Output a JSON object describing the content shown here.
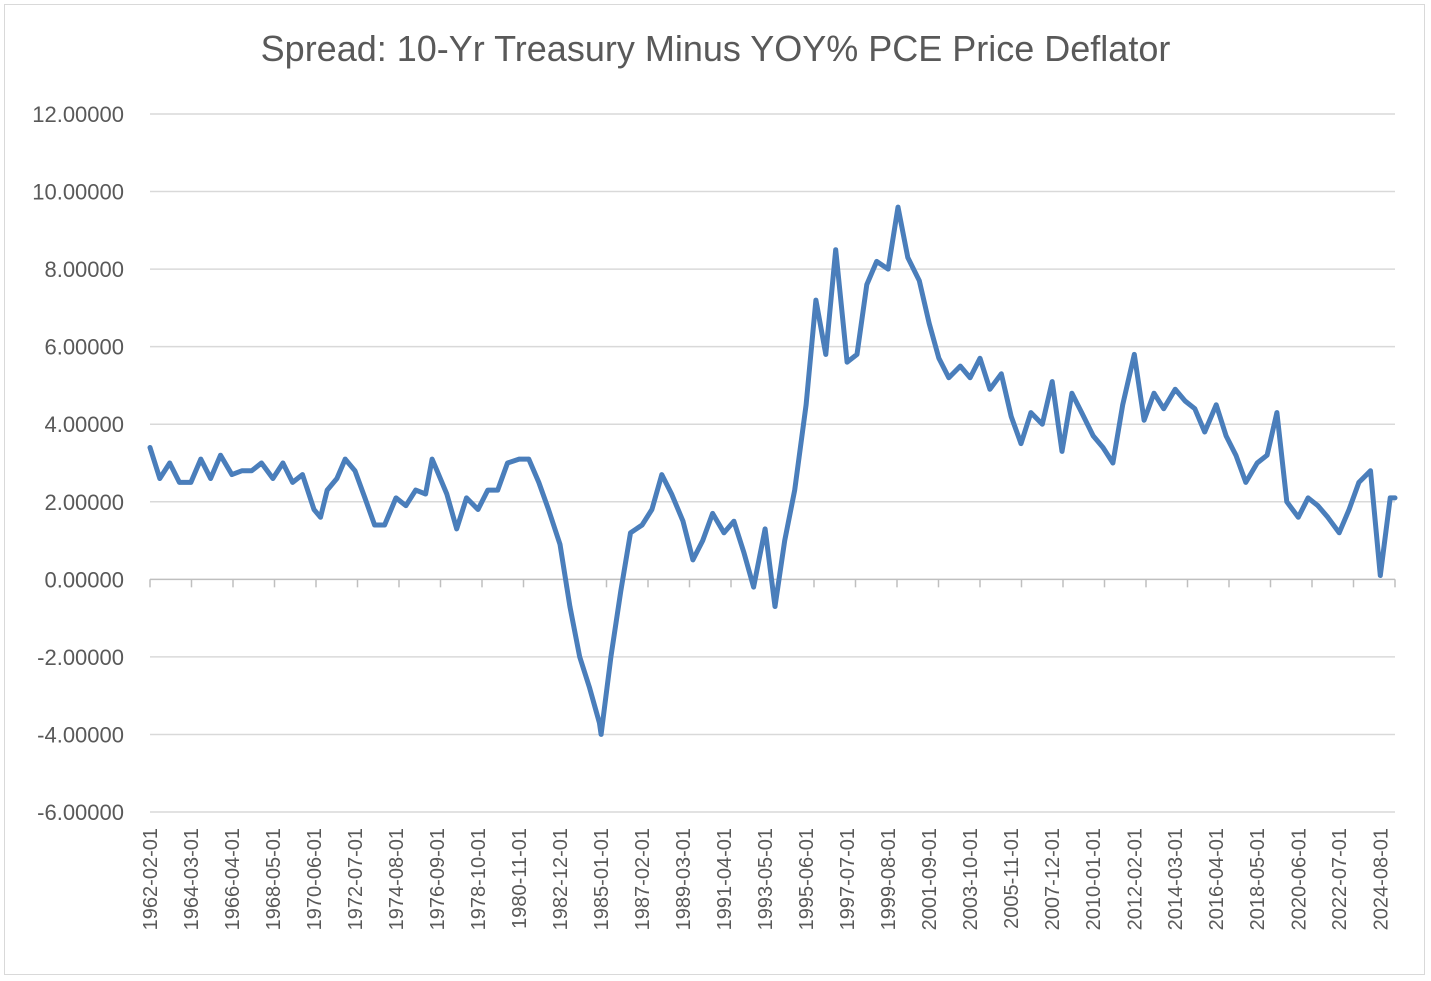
{
  "chart_data": {
    "type": "line",
    "title": "Spread: 10-Yr Treasury Minus YOY% PCE Price Deflator",
    "xlabel": "",
    "ylabel": "",
    "ylim": [
      -6,
      12
    ],
    "yticks": [
      12,
      10,
      8,
      6,
      4,
      2,
      0,
      -2,
      -4,
      -6
    ],
    "ytick_labels": [
      "12.00000",
      "10.00000",
      "8.00000",
      "6.00000",
      "4.00000",
      "2.00000",
      "0.00000",
      "-2.00000",
      "-4.00000",
      "-6.00000"
    ],
    "xtick_labels": [
      "1962-02-01",
      "1964-03-01",
      "1966-04-01",
      "1968-05-01",
      "1970-06-01",
      "1972-07-01",
      "1974-08-01",
      "1976-09-01",
      "1978-10-01",
      "1980-11-01",
      "1982-12-01",
      "1985-01-01",
      "1987-02-01",
      "1989-03-01",
      "1991-04-01",
      "1993-05-01",
      "1995-06-01",
      "1997-07-01",
      "1999-08-01",
      "2001-09-01",
      "2003-10-01",
      "2005-11-01",
      "2007-12-01",
      "2010-01-01",
      "2012-02-01",
      "2014-03-01",
      "2016-04-01",
      "2018-05-01",
      "2020-06-01",
      "2022-07-01",
      "2024-08-01"
    ],
    "x_range": [
      "1962-02-01",
      "2025-05-01"
    ],
    "grid": true,
    "legend": "none",
    "series_color": "#4a7ebb",
    "series": [
      {
        "points": [
          [
            "1962-02-01",
            3.4
          ],
          [
            "1962-08-01",
            2.6
          ],
          [
            "1963-02-01",
            3.0
          ],
          [
            "1963-08-01",
            2.5
          ],
          [
            "1964-03-01",
            2.5
          ],
          [
            "1964-09-01",
            3.1
          ],
          [
            "1965-03-01",
            2.6
          ],
          [
            "1965-09-01",
            3.2
          ],
          [
            "1966-04-01",
            2.7
          ],
          [
            "1966-10-01",
            2.8
          ],
          [
            "1967-04-01",
            2.8
          ],
          [
            "1967-10-01",
            3.0
          ],
          [
            "1968-05-01",
            2.6
          ],
          [
            "1968-11-01",
            3.0
          ],
          [
            "1969-05-01",
            2.5
          ],
          [
            "1969-11-01",
            2.7
          ],
          [
            "1970-06-01",
            1.8
          ],
          [
            "1970-10-01",
            1.6
          ],
          [
            "1971-02-01",
            2.3
          ],
          [
            "1971-08-01",
            2.6
          ],
          [
            "1972-01-01",
            3.1
          ],
          [
            "1972-07-01",
            2.8
          ],
          [
            "1973-01-01",
            2.1
          ],
          [
            "1973-07-01",
            1.4
          ],
          [
            "1974-01-01",
            1.4
          ],
          [
            "1974-08-01",
            2.1
          ],
          [
            "1975-02-01",
            1.9
          ],
          [
            "1975-08-01",
            2.3
          ],
          [
            "1976-02-01",
            2.2
          ],
          [
            "1976-06-01",
            3.1
          ],
          [
            "1976-09-01",
            2.8
          ],
          [
            "1977-03-01",
            2.2
          ],
          [
            "1977-09-01",
            1.3
          ],
          [
            "1978-03-01",
            2.1
          ],
          [
            "1978-10-01",
            1.8
          ],
          [
            "1979-04-01",
            2.3
          ],
          [
            "1979-10-01",
            2.3
          ],
          [
            "1980-04-01",
            3.0
          ],
          [
            "1980-11-01",
            3.1
          ],
          [
            "1981-05-01",
            3.1
          ],
          [
            "1981-11-01",
            2.5
          ],
          [
            "1982-05-01",
            1.8
          ],
          [
            "1982-12-01",
            0.9
          ],
          [
            "1983-06-01",
            -0.7
          ],
          [
            "1983-12-01",
            -2.0
          ],
          [
            "1984-06-01",
            -2.8
          ],
          [
            "1984-12-01",
            -3.7
          ],
          [
            "1985-01-01",
            -4.0
          ],
          [
            "1985-07-01",
            -2.0
          ],
          [
            "1986-01-01",
            -0.3
          ],
          [
            "1986-07-01",
            1.2
          ],
          [
            "1987-02-01",
            1.4
          ],
          [
            "1987-08-01",
            1.8
          ],
          [
            "1988-02-01",
            2.7
          ],
          [
            "1988-08-01",
            2.2
          ],
          [
            "1989-03-01",
            1.5
          ],
          [
            "1989-09-01",
            0.5
          ],
          [
            "1990-03-01",
            1.0
          ],
          [
            "1990-09-01",
            1.7
          ],
          [
            "1991-04-01",
            1.2
          ],
          [
            "1991-10-01",
            1.5
          ],
          [
            "1992-04-01",
            0.7
          ],
          [
            "1992-10-01",
            -0.2
          ],
          [
            "1993-05-01",
            1.3
          ],
          [
            "1993-11-01",
            -0.7
          ],
          [
            "1994-05-01",
            1.0
          ],
          [
            "1994-11-01",
            2.3
          ],
          [
            "1995-06-01",
            4.5
          ],
          [
            "1995-12-01",
            7.2
          ],
          [
            "1996-06-01",
            5.8
          ],
          [
            "1996-12-01",
            8.5
          ],
          [
            "1997-07-01",
            5.6
          ],
          [
            "1998-01-01",
            5.8
          ],
          [
            "1998-07-01",
            7.6
          ],
          [
            "1999-01-01",
            8.2
          ],
          [
            "1999-08-01",
            8.0
          ],
          [
            "2000-02-01",
            9.6
          ],
          [
            "2000-08-01",
            8.3
          ],
          [
            "2001-03-01",
            7.7
          ],
          [
            "2001-09-01",
            6.6
          ],
          [
            "2002-03-01",
            5.7
          ],
          [
            "2002-09-01",
            5.2
          ],
          [
            "2003-04-01",
            5.5
          ],
          [
            "2003-10-01",
            5.2
          ],
          [
            "2004-04-01",
            5.7
          ],
          [
            "2004-10-01",
            4.9
          ],
          [
            "2005-05-01",
            5.3
          ],
          [
            "2005-11-01",
            4.2
          ],
          [
            "2006-05-01",
            3.5
          ],
          [
            "2006-11-01",
            4.3
          ],
          [
            "2007-06-01",
            4.0
          ],
          [
            "2007-12-01",
            5.1
          ],
          [
            "2008-06-01",
            3.3
          ],
          [
            "2008-12-01",
            4.8
          ],
          [
            "2009-06-01",
            4.3
          ],
          [
            "2010-01-01",
            3.7
          ],
          [
            "2010-07-01",
            3.4
          ],
          [
            "2011-01-01",
            3.0
          ],
          [
            "2011-07-01",
            4.5
          ],
          [
            "2012-02-01",
            5.8
          ],
          [
            "2012-08-01",
            4.1
          ],
          [
            "2013-02-01",
            4.8
          ],
          [
            "2013-08-01",
            4.4
          ],
          [
            "2014-03-01",
            4.9
          ],
          [
            "2014-09-01",
            4.6
          ],
          [
            "2015-03-01",
            4.4
          ],
          [
            "2015-09-01",
            3.8
          ],
          [
            "2016-04-01",
            4.5
          ],
          [
            "2016-10-01",
            3.7
          ],
          [
            "2017-04-01",
            3.2
          ],
          [
            "2017-10-01",
            2.5
          ],
          [
            "2018-05-01",
            3.0
          ],
          [
            "2018-11-01",
            3.2
          ],
          [
            "2019-05-01",
            4.3
          ],
          [
            "2019-11-01",
            2.0
          ],
          [
            "2020-06-01",
            1.6
          ],
          [
            "2020-12-01",
            2.1
          ],
          [
            "2021-06-01",
            1.9
          ],
          [
            "2021-12-01",
            1.6
          ],
          [
            "2022-07-01",
            1.2
          ],
          [
            "2023-01-01",
            1.8
          ],
          [
            "2023-07-01",
            2.5
          ],
          [
            "2024-02-01",
            2.8
          ],
          [
            "2024-08-01",
            0.1
          ],
          [
            "2025-02-01",
            2.1
          ],
          [
            "2025-05-01",
            2.1
          ]
        ]
      }
    ]
  }
}
